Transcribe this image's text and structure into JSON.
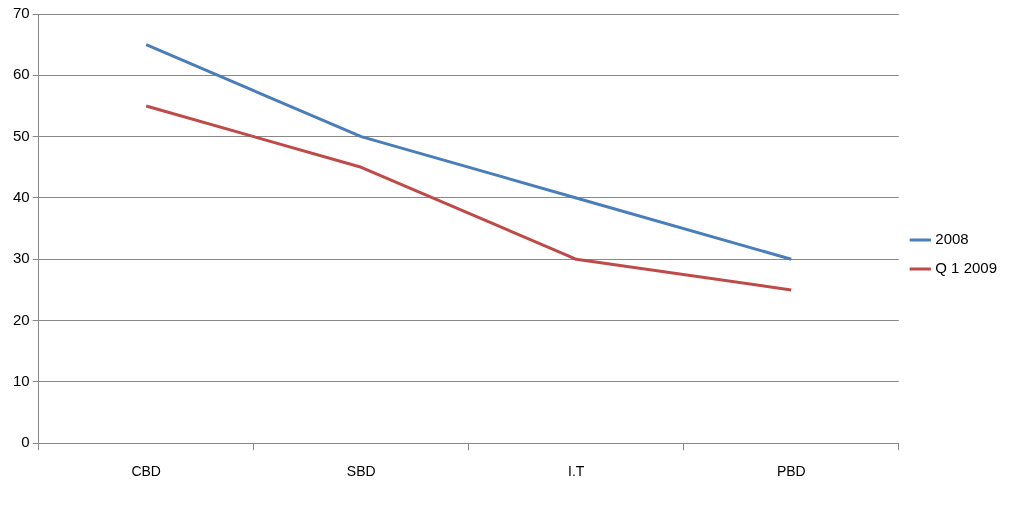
{
  "chart_data": {
    "type": "line",
    "categories": [
      "CBD",
      "SBD",
      "I.T",
      "PBD"
    ],
    "series": [
      {
        "name": "2008",
        "color": "#4a7ebb",
        "values": [
          65,
          50,
          40,
          30
        ]
      },
      {
        "name": "Q 1 2009",
        "color": "#be4b48",
        "values": [
          55,
          45,
          30,
          25
        ]
      }
    ],
    "ylim": [
      0,
      70
    ],
    "yticks": [
      0,
      10,
      20,
      30,
      40,
      50,
      60,
      70
    ],
    "grid": "y",
    "legend": "right",
    "marker": "none",
    "line_style": "solid"
  }
}
